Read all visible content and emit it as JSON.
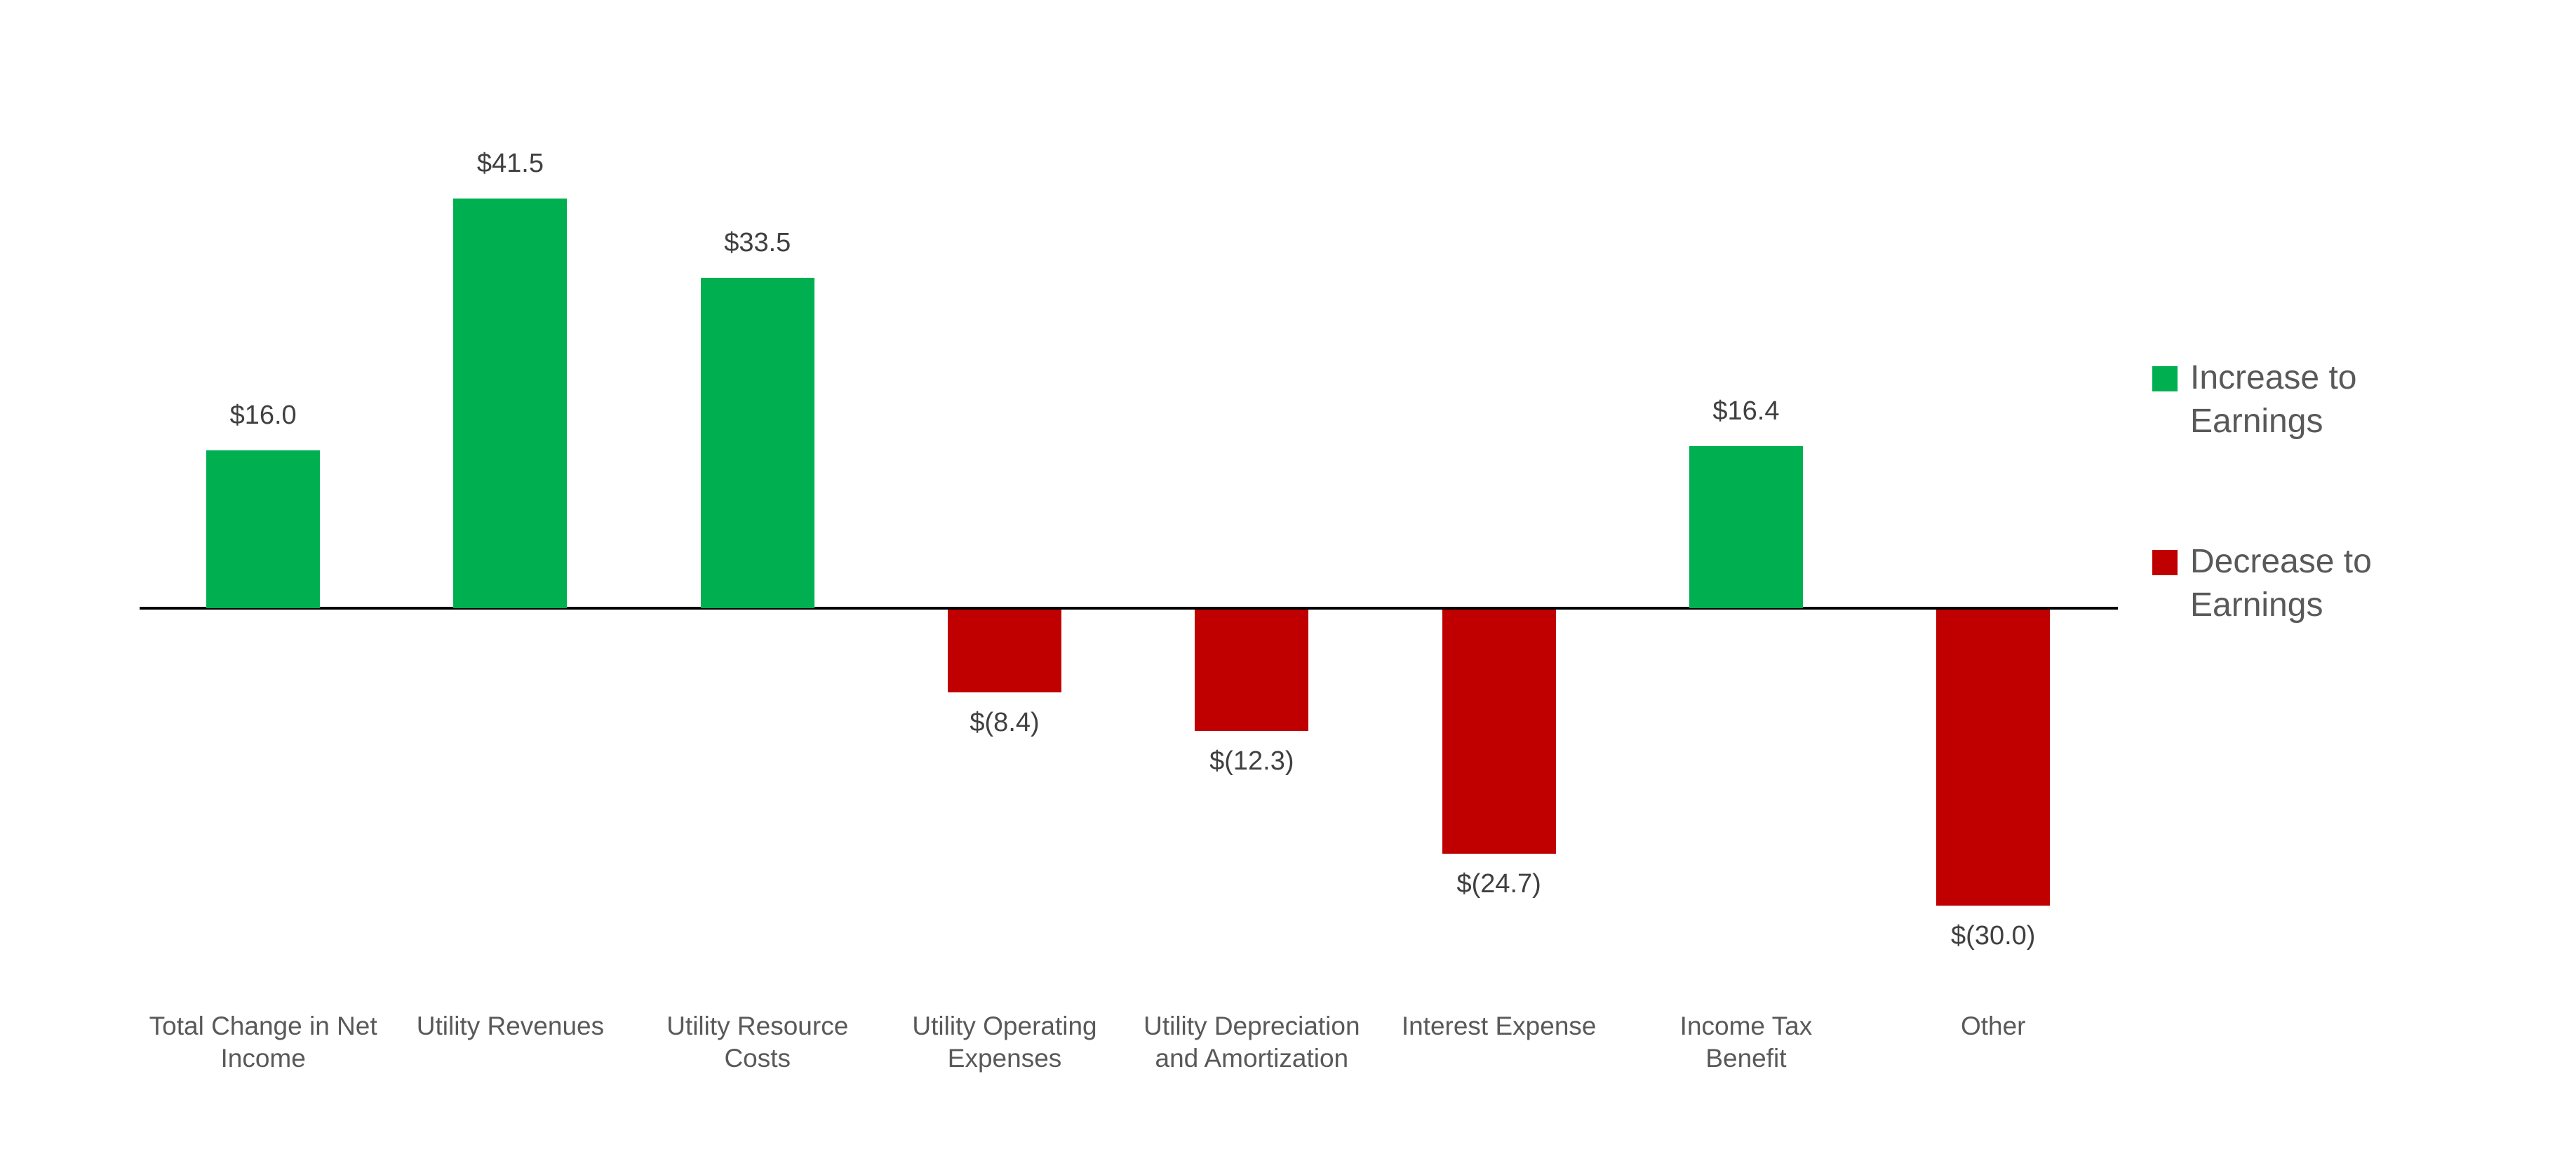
{
  "chart_data": {
    "type": "bar",
    "title": "",
    "xlabel": "",
    "ylabel": "",
    "grid": false,
    "y_axis_visible": false,
    "baseline": 0,
    "ylim": [
      -35,
      45
    ],
    "legend_position": "right",
    "categories": [
      "Total Change in Net\nIncome",
      "Utility Revenues",
      "Utility Resource\nCosts",
      "Utility Operating\nExpenses",
      "Utility Depreciation\nand Amortization",
      "Interest Expense",
      "Income Tax\nBenefit",
      "Other"
    ],
    "values": [
      16.0,
      41.5,
      33.5,
      -8.4,
      -12.3,
      -24.7,
      16.4,
      -30.0
    ],
    "labels": [
      "$16.0",
      "$41.5",
      "$33.5",
      "$(8.4)",
      "$(12.3)",
      "$(24.7)",
      "$16.4",
      "$(30.0)"
    ],
    "legend": [
      {
        "name": "Increase to Earnings",
        "color": "#00B050"
      },
      {
        "name": "Decrease to Earnings",
        "color": "#C00000"
      }
    ],
    "colors": {
      "increase": "#00B050",
      "decrease": "#C00000",
      "axis": "#000000",
      "value_label_text": "#404040",
      "category_label_text": "#595959",
      "legend_text": "#595959",
      "background": "#FFFFFF"
    }
  }
}
